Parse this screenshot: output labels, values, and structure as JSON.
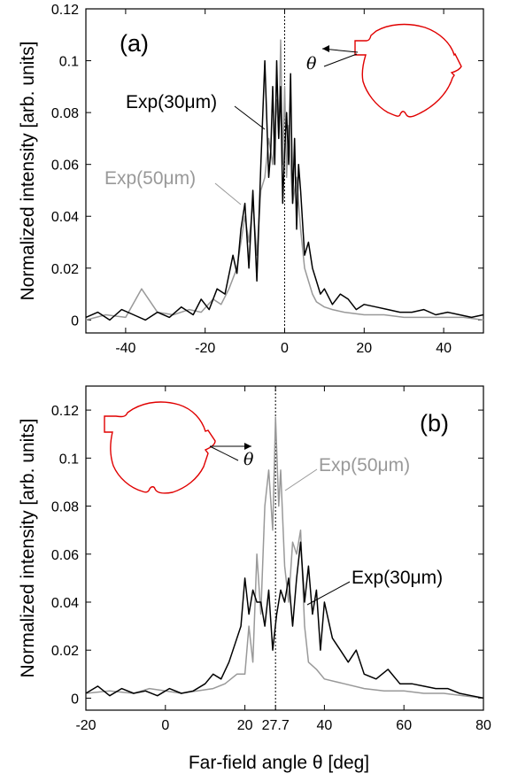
{
  "chart_data": [
    {
      "type": "line",
      "panel_label": "(a)",
      "ylabel": "Normalized intensity [arb. units]",
      "xlabel": "",
      "xlim": [
        -50,
        50
      ],
      "ylim": [
        -0.005,
        0.12
      ],
      "xticks": [
        -40,
        -20,
        0,
        20,
        40
      ],
      "xtick_labels": [
        "-40",
        "-20",
        "0",
        "20",
        "40"
      ],
      "yticks": [
        0,
        0.02,
        0.04,
        0.06,
        0.08,
        0.1,
        0.12
      ],
      "ytick_labels": [
        "0",
        "0.02",
        "0.04",
        "0.06",
        "0.08",
        "0.1",
        "0.12"
      ],
      "vline_x": 0,
      "inset_theta_label": "θ",
      "annotations": [
        {
          "text": "Exp(30μm)",
          "series": 0
        },
        {
          "text": "Exp(50μm)",
          "series": 1
        }
      ],
      "series": [
        {
          "name": "Exp(30μm)",
          "color": "#000000",
          "x": [
            -50,
            -47,
            -44,
            -41,
            -38,
            -35,
            -32,
            -29,
            -26,
            -23,
            -21,
            -19,
            -17,
            -15,
            -13,
            -12,
            -11,
            -10,
            -9,
            -8,
            -7,
            -6,
            -5,
            -4,
            -3.5,
            -3,
            -2.5,
            -2,
            -1.5,
            -1,
            -0.5,
            0,
            0.5,
            1,
            1.5,
            2,
            2.5,
            3,
            3.5,
            4,
            5,
            6,
            7,
            8,
            9,
            10,
            12,
            14,
            16,
            18,
            20,
            23,
            26,
            29,
            32,
            35,
            38,
            41,
            44,
            47,
            50
          ],
          "y": [
            0.001,
            0.003,
            0.0,
            0.004,
            0.002,
            0.0,
            0.003,
            0.001,
            0.005,
            0.002,
            0.008,
            0.004,
            0.012,
            0.01,
            0.025,
            0.018,
            0.035,
            0.045,
            0.02,
            0.05,
            0.015,
            0.06,
            0.1,
            0.055,
            0.065,
            0.09,
            0.06,
            0.1,
            0.07,
            0.09,
            0.045,
            0.065,
            0.08,
            0.06,
            0.095,
            0.045,
            0.07,
            0.035,
            0.06,
            0.05,
            0.025,
            0.03,
            0.02,
            0.015,
            0.01,
            0.012,
            0.006,
            0.01,
            0.008,
            0.004,
            0.006,
            0.005,
            0.004,
            0.003,
            0.003,
            0.004,
            0.002,
            0.003,
            0.002,
            0.001,
            0.002
          ]
        },
        {
          "name": "Exp(50μm)",
          "color": "#999999",
          "x": [
            -50,
            -45,
            -40,
            -36,
            -32,
            -28,
            -24,
            -21,
            -18,
            -16,
            -14,
            -12,
            -10,
            -9,
            -8,
            -7,
            -6,
            -5,
            -4,
            -3,
            -2,
            -1.5,
            -1,
            -0.5,
            0,
            0.5,
            1,
            2,
            3,
            4,
            5,
            6,
            7,
            8,
            10,
            12,
            15,
            20,
            25,
            30,
            35,
            40,
            45,
            50
          ],
          "y": [
            0.0,
            0.002,
            0.001,
            0.012,
            0.003,
            0.002,
            0.004,
            0.003,
            0.008,
            0.006,
            0.012,
            0.02,
            0.04,
            0.03,
            0.045,
            0.025,
            0.05,
            0.055,
            0.07,
            0.06,
            0.085,
            0.07,
            0.108,
            0.06,
            0.09,
            0.055,
            0.075,
            0.045,
            0.055,
            0.035,
            0.02,
            0.015,
            0.01,
            0.007,
            0.005,
            0.004,
            0.003,
            0.002,
            0.002,
            0.001,
            0.001,
            0.001,
            0.001,
            0.0
          ]
        }
      ]
    },
    {
      "type": "line",
      "panel_label": "(b)",
      "ylabel": "Normalized intensity [arb. units]",
      "xlabel": "Far-field angle θ [deg]",
      "xlim": [
        -20,
        80
      ],
      "ylim": [
        -0.005,
        0.13
      ],
      "xticks": [
        -20,
        0,
        20,
        27.7,
        40,
        60,
        80
      ],
      "xtick_labels": [
        "-20",
        "0",
        "20",
        "27.7",
        "40",
        "60",
        "80"
      ],
      "yticks": [
        0,
        0.02,
        0.04,
        0.06,
        0.08,
        0.1,
        0.12
      ],
      "ytick_labels": [
        "0",
        "0.02",
        "0.04",
        "0.06",
        "0.08",
        "0.1",
        "0.12"
      ],
      "vline_x": 27.7,
      "inset_theta_label": "θ",
      "annotations": [
        {
          "text": "Exp(50μm)",
          "series": 1
        },
        {
          "text": "Exp(30μm)",
          "series": 0
        }
      ],
      "series": [
        {
          "name": "Exp(30μm)",
          "color": "#000000",
          "x": [
            -20,
            -17,
            -14,
            -11,
            -8,
            -5,
            -2,
            1,
            4,
            7,
            10,
            12,
            14,
            16,
            18,
            19,
            20,
            21,
            22,
            23,
            24,
            25,
            26,
            27,
            28,
            29,
            30,
            31,
            32,
            33,
            34,
            35,
            36,
            37,
            38,
            39,
            40,
            42,
            44,
            46,
            48,
            50,
            53,
            56,
            59,
            62,
            65,
            68,
            71,
            74,
            77,
            80
          ],
          "y": [
            0.002,
            0.005,
            0.001,
            0.004,
            0.002,
            0.003,
            0.001,
            0.004,
            0.002,
            0.003,
            0.006,
            0.01,
            0.008,
            0.015,
            0.025,
            0.03,
            0.05,
            0.035,
            0.045,
            0.04,
            0.04,
            0.03,
            0.045,
            0.02,
            0.035,
            0.045,
            0.04,
            0.05,
            0.03,
            0.05,
            0.065,
            0.04,
            0.055,
            0.035,
            0.045,
            0.02,
            0.04,
            0.025,
            0.02,
            0.015,
            0.02,
            0.01,
            0.008,
            0.012,
            0.006,
            0.006,
            0.005,
            0.004,
            0.004,
            0.002,
            0.001,
            0.0
          ]
        },
        {
          "name": "Exp(50μm)",
          "color": "#999999",
          "x": [
            -20,
            -14,
            -8,
            -4,
            0,
            4,
            8,
            12,
            15,
            18,
            20,
            21,
            22,
            23,
            24,
            25,
            26,
            27,
            27.7,
            28.5,
            29,
            30,
            31,
            32,
            33,
            34,
            35,
            36,
            38,
            40,
            45,
            50,
            55,
            60,
            65,
            70,
            75,
            80
          ],
          "y": [
            0.002,
            0.003,
            0.002,
            0.004,
            0.003,
            0.002,
            0.003,
            0.004,
            0.006,
            0.01,
            0.01,
            0.03,
            0.015,
            0.06,
            0.035,
            0.08,
            0.095,
            0.07,
            0.117,
            0.08,
            0.095,
            0.055,
            0.04,
            0.065,
            0.06,
            0.07,
            0.03,
            0.015,
            0.012,
            0.008,
            0.006,
            0.004,
            0.003,
            0.003,
            0.002,
            0.002,
            0.001,
            0.0
          ]
        }
      ]
    }
  ]
}
